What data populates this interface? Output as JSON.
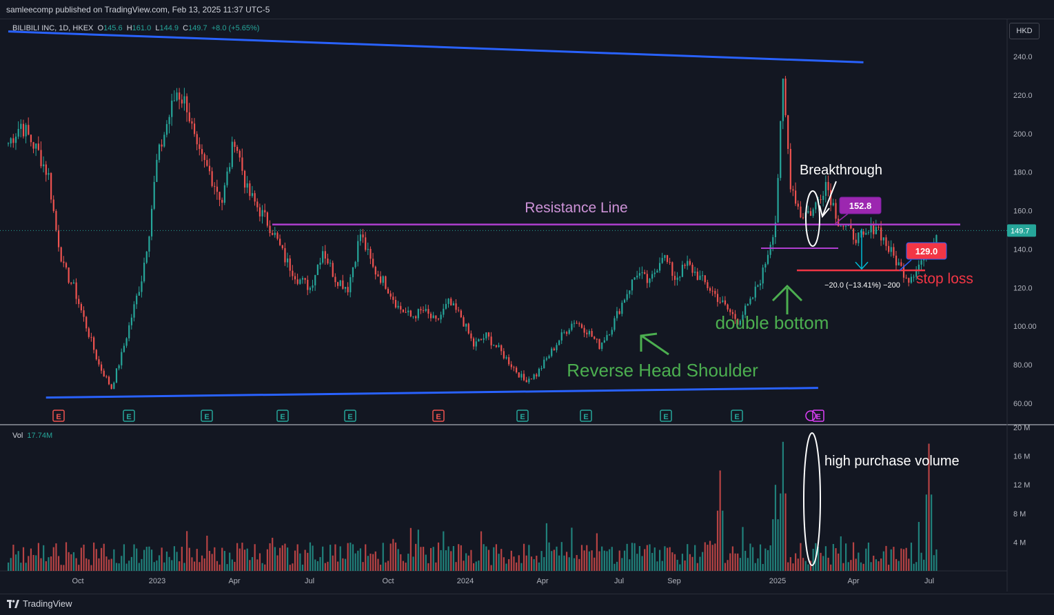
{
  "header": {
    "publisher_line": "samleecomp published on TradingView.com, Feb 13, 2025 11:37 UTC-5"
  },
  "legend": {
    "symbol": "BILIBILI INC, 1D, HKEX",
    "o_label": "O",
    "o_value": "145.6",
    "h_label": "H",
    "h_value": "161.0",
    "l_label": "L",
    "l_value": "144.9",
    "c_label": "C",
    "c_value": "149.7",
    "change": "+8.0 (+5.65%)"
  },
  "currency_button": "HKD",
  "volume_legend": {
    "label": "Vol",
    "value": "17.74M"
  },
  "footer": {
    "brand": "TradingView"
  },
  "colors": {
    "up": "#26a69a",
    "down": "#ef5350",
    "trend": "#2962ff",
    "resistance": "#b03fd0",
    "stop": "#f23645",
    "label_purple": "#9c27b0",
    "annot_green": "#4caf50",
    "measure": "#00bcd4"
  },
  "chart_data": {
    "type": "candlestick",
    "price_axis": {
      "ticks": [
        "240.0",
        "220.0",
        "200.0",
        "180.0",
        "160.0",
        "140.0",
        "120.0",
        "100.00",
        "80.00",
        "60.00"
      ],
      "range": [
        55,
        245
      ],
      "last_price": "149.7"
    },
    "volume_axis": {
      "ticks": [
        "20 M",
        "16 M",
        "12 M",
        "8 M",
        "4 M"
      ],
      "range": [
        0,
        20
      ]
    },
    "time_axis": {
      "labels": [
        "Oct",
        "2023",
        "Apr",
        "Jul",
        "Oct",
        "2024",
        "Apr",
        "Jul",
        "Sep",
        "2025",
        "Apr",
        "Jul"
      ]
    },
    "price_path": [
      [
        0,
        195
      ],
      [
        5,
        205
      ],
      [
        12,
        190
      ],
      [
        16,
        178
      ],
      [
        19,
        150
      ],
      [
        22,
        130
      ],
      [
        26,
        120
      ],
      [
        31,
        100
      ],
      [
        36,
        80
      ],
      [
        41,
        68
      ],
      [
        45,
        85
      ],
      [
        49,
        105
      ],
      [
        53,
        125
      ],
      [
        56,
        150
      ],
      [
        59,
        185
      ],
      [
        63,
        205
      ],
      [
        67,
        222
      ],
      [
        71,
        215
      ],
      [
        75,
        190
      ],
      [
        80,
        180
      ],
      [
        85,
        165
      ],
      [
        90,
        198
      ],
      [
        95,
        170
      ],
      [
        100,
        160
      ],
      [
        105,
        150
      ],
      [
        110,
        135
      ],
      [
        115,
        125
      ],
      [
        120,
        120
      ],
      [
        125,
        140
      ],
      [
        130,
        125
      ],
      [
        135,
        120
      ],
      [
        140,
        148
      ],
      [
        145,
        130
      ],
      [
        150,
        122
      ],
      [
        155,
        110
      ],
      [
        160,
        105
      ],
      [
        165,
        108
      ],
      [
        170,
        102
      ],
      [
        175,
        112
      ],
      [
        180,
        105
      ],
      [
        185,
        90
      ],
      [
        190,
        95
      ],
      [
        195,
        88
      ],
      [
        200,
        80
      ],
      [
        205,
        72
      ],
      [
        210,
        75
      ],
      [
        215,
        85
      ],
      [
        220,
        95
      ],
      [
        225,
        103
      ],
      [
        230,
        98
      ],
      [
        235,
        90
      ],
      [
        240,
        100
      ],
      [
        245,
        115
      ],
      [
        250,
        128
      ],
      [
        255,
        122
      ],
      [
        260,
        138
      ],
      [
        265,
        125
      ],
      [
        270,
        132
      ],
      [
        275,
        125
      ],
      [
        280,
        118
      ],
      [
        285,
        110
      ],
      [
        290,
        103
      ],
      [
        295,
        112
      ],
      [
        300,
        128
      ],
      [
        305,
        155
      ],
      [
        308,
        225
      ],
      [
        311,
        175
      ],
      [
        315,
        158
      ],
      [
        320,
        160
      ],
      [
        325,
        175
      ],
      [
        330,
        155
      ],
      [
        335,
        148
      ],
      [
        340,
        145
      ],
      [
        345,
        153
      ],
      [
        350,
        140
      ],
      [
        355,
        130
      ],
      [
        358,
        125
      ],
      [
        362,
        132
      ],
      [
        366,
        140
      ],
      [
        369,
        150
      ]
    ],
    "volume_spikes": [
      [
        305,
        12
      ],
      [
        308,
        18
      ],
      [
        283,
        14
      ],
      [
        366,
        17.74
      ]
    ],
    "trendline_upper": {
      "from": [
        0,
        253
      ],
      "to": [
        340,
        237
      ]
    },
    "trendline_lower": {
      "from": [
        15,
        63
      ],
      "to": [
        322,
        68
      ]
    },
    "levels": {
      "resistance": 152.8,
      "neckline": 140.5,
      "stop": 129.0
    },
    "annotations": {
      "resistance": "Resistance Line",
      "breakthrough": "Breakthrough",
      "double_bottom": "double bottom",
      "reverse_hs": "Reverse Head Shoulder",
      "stop_loss": "stop loss",
      "high_volume": "high purchase volume",
      "measure": "−20.0 (−13.41%) −200",
      "label_resistance": "152.8",
      "label_stop": "129.0"
    },
    "earnings_markers": [
      {
        "type": "E",
        "color": "red"
      },
      {
        "type": "E",
        "color": "green"
      },
      {
        "type": "E",
        "color": "green"
      },
      {
        "type": "E",
        "color": "green"
      },
      {
        "type": "E",
        "color": "green"
      },
      {
        "type": "E",
        "color": "red"
      },
      {
        "type": "E",
        "color": "green"
      },
      {
        "type": "E",
        "color": "green"
      },
      {
        "type": "E",
        "color": "green"
      },
      {
        "type": "E",
        "color": "green"
      },
      {
        "type": "E",
        "color": "purple"
      }
    ]
  }
}
